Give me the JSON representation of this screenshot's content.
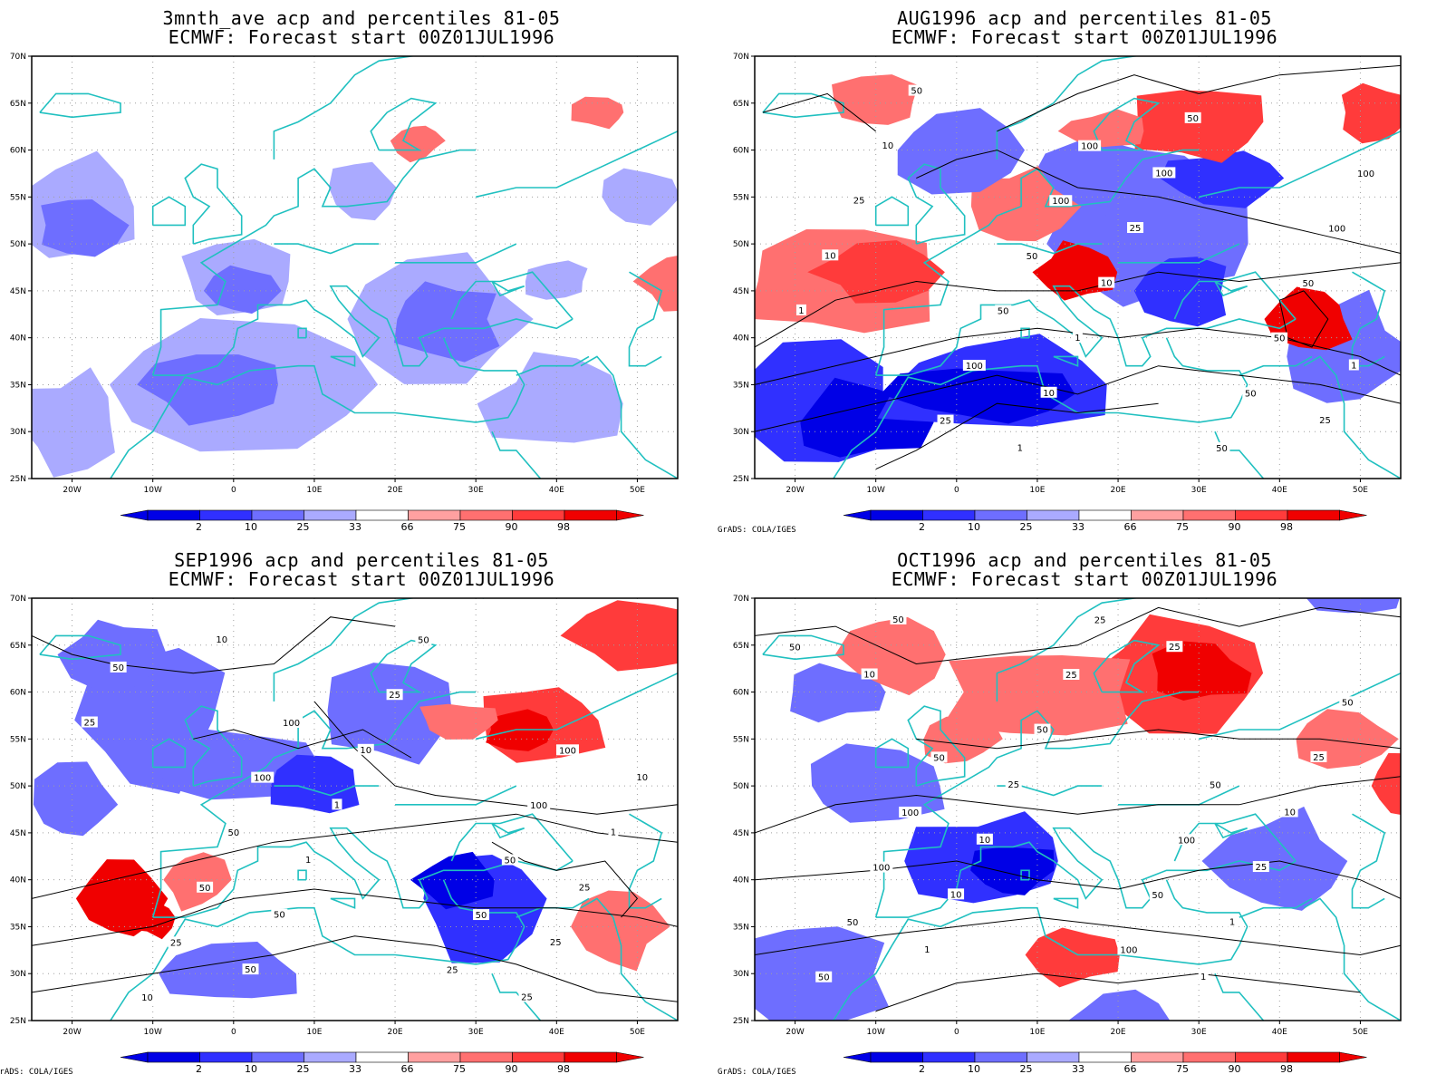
{
  "panels": [
    {
      "title": "3mnth_ave acp and percentiles 81-05",
      "subtitle": "ECMWF: Forecast start 00Z01JUL1996",
      "credit": "",
      "contour_labels": []
    },
    {
      "title": "AUG1996 acp and percentiles 81-05",
      "subtitle": "ECMWF: Forecast start 00Z01JUL1996",
      "credit": "GrADS: COLA/IGES",
      "contour_labels": [
        "100",
        "100",
        "100",
        "100",
        "50",
        "50",
        "50",
        "50",
        "100",
        "50",
        "25",
        "50",
        "50",
        "50",
        "10",
        "100",
        "25",
        "25",
        "10",
        "10",
        "1",
        "1",
        "1",
        "10",
        "25",
        "1"
      ]
    },
    {
      "title": "SEP1996 acp and percentiles 81-05",
      "subtitle": "ECMWF: Forecast start 00Z01JUL1996",
      "credit": "GrADS: COLA/IGES",
      "contour_labels": [
        "100",
        "100",
        "100",
        "100",
        "50",
        "50",
        "50",
        "50",
        "25",
        "25",
        "10",
        "50",
        "50",
        "25",
        "25",
        "10",
        "10",
        "1",
        "1",
        "1",
        "25",
        "50",
        "25",
        "50",
        "25",
        "10"
      ]
    },
    {
      "title": "OCT1996 acp and percentiles 81-05",
      "subtitle": "ECMWF: Forecast start 00Z01JUL1996",
      "credit": "GrADS: COLA/IGES",
      "contour_labels": [
        "50",
        "50",
        "100",
        "100",
        "100",
        "50",
        "50",
        "100",
        "50",
        "25",
        "50",
        "25",
        "50",
        "50",
        "25",
        "25",
        "10",
        "10",
        "25",
        "10",
        "1",
        "1",
        "1",
        "50",
        "25",
        "10"
      ]
    }
  ],
  "axes": {
    "x_ticks": [
      "20W",
      "10W",
      "0",
      "10E",
      "20E",
      "30E",
      "40E",
      "50E"
    ],
    "y_ticks": [
      "70N",
      "65N",
      "60N",
      "55N",
      "50N",
      "45N",
      "40N",
      "35N",
      "30N",
      "25N"
    ],
    "lon_range": [
      -25,
      55
    ],
    "lat_range": [
      25,
      70
    ]
  },
  "colorbar": {
    "labels": [
      "2",
      "10",
      "25",
      "33",
      "66",
      "75",
      "90",
      "98"
    ],
    "colors": [
      "#0000e6",
      "#3030ff",
      "#6e6eff",
      "#aaaaff",
      "#ffffff",
      "#ffa0a0",
      "#ff7070",
      "#ff3b3b",
      "#f00000"
    ]
  },
  "colors": {
    "coast": "#20c0c0",
    "contour": "#000000",
    "grid": "#a0a0a0"
  }
}
